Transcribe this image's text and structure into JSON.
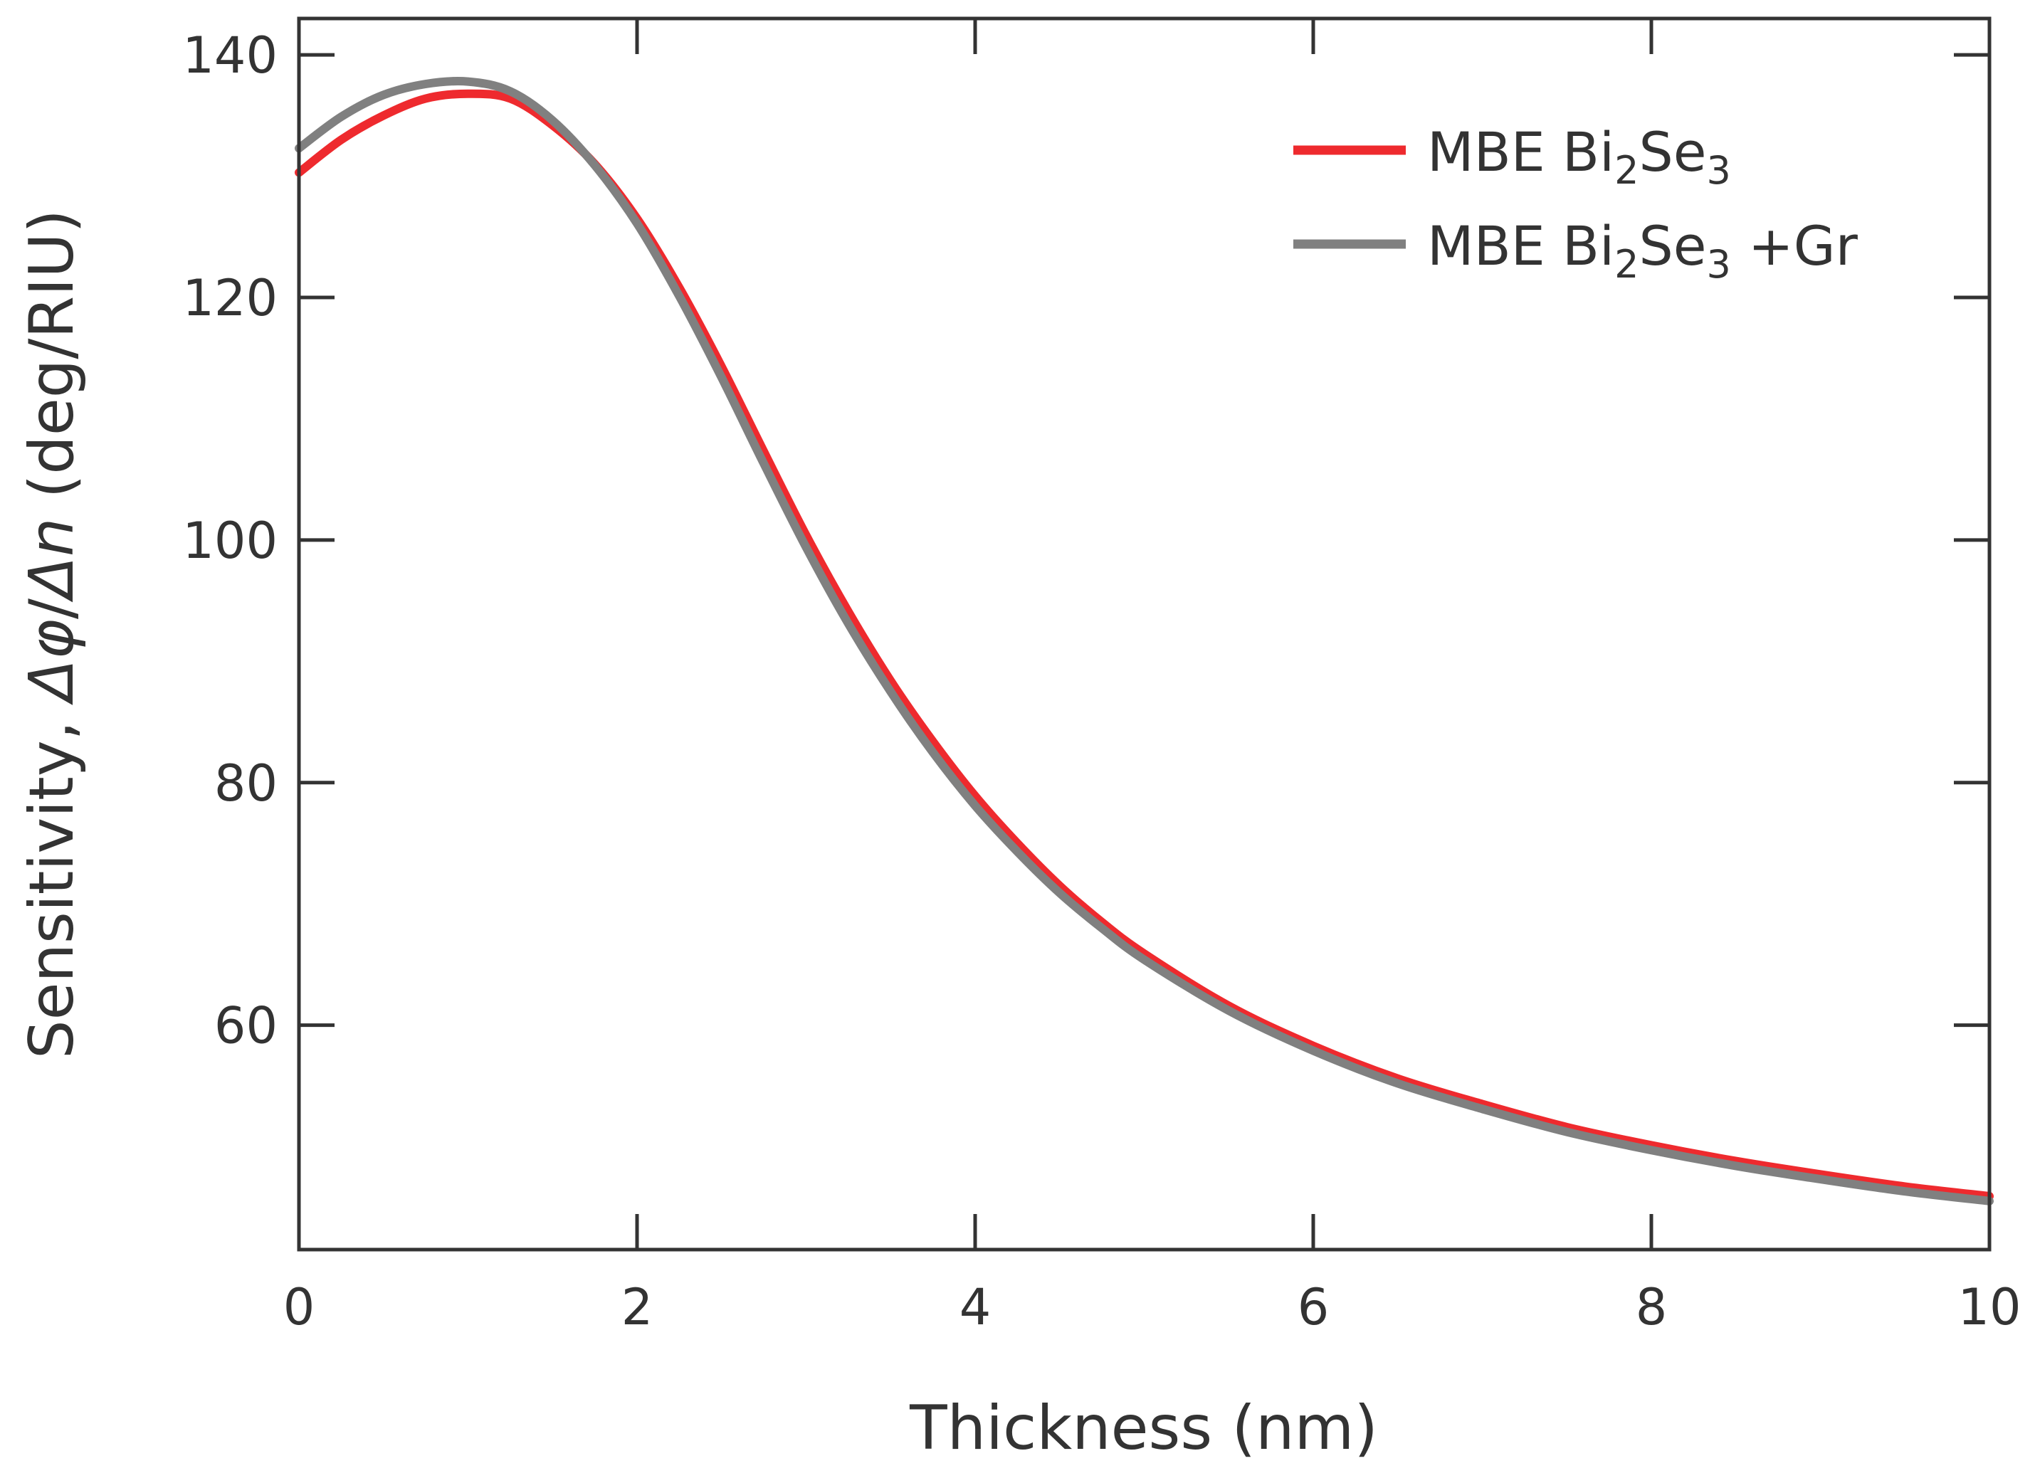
{
  "chart_data": {
    "type": "line",
    "title": "",
    "xlabel": "Thickness (nm)",
    "ylabel": {
      "prefix": "Sensitivity, ",
      "delta1": "Δ",
      "phi": "φ",
      "slash": "/",
      "delta2": "Δ",
      "n": "n",
      "units": " (deg/RIU)"
    },
    "xlim": [
      0,
      10
    ],
    "ylim": [
      41.5,
      143
    ],
    "xticks": [
      0,
      2,
      4,
      6,
      8,
      10
    ],
    "yticks": [
      60,
      80,
      100,
      120,
      140
    ],
    "grid": false,
    "legend_position": "top-right",
    "series": [
      {
        "name": "MBE Bi2Se3",
        "label_parts": [
          "MBE Bi",
          "2",
          "Se",
          "3",
          ""
        ],
        "color": "#ee2a2e",
        "x": [
          0,
          0.25,
          0.5,
          0.75,
          1.0,
          1.25,
          1.5,
          1.75,
          2.0,
          2.25,
          2.5,
          2.75,
          3.0,
          3.25,
          3.5,
          3.75,
          4.0,
          4.25,
          4.5,
          4.75,
          5.0,
          5.5,
          6.0,
          6.5,
          7.0,
          7.5,
          8.0,
          8.5,
          9.0,
          9.5,
          10.0
        ],
        "y": [
          130.3,
          133.0,
          135.0,
          136.4,
          136.8,
          136.4,
          134.2,
          131.0,
          126.5,
          120.8,
          114.3,
          107.3,
          100.4,
          94.1,
          88.4,
          83.4,
          78.9,
          75.0,
          71.5,
          68.5,
          65.9,
          61.6,
          58.3,
          55.6,
          53.5,
          51.6,
          50.1,
          48.8,
          47.7,
          46.7,
          45.9
        ]
      },
      {
        "name": "MBE Bi2Se3 +Gr",
        "label_parts": [
          "MBE Bi",
          "2",
          "Se",
          "3",
          " +Gr"
        ],
        "color": "#808080",
        "x": [
          0,
          0.25,
          0.5,
          0.75,
          1.0,
          1.25,
          1.5,
          1.75,
          2.0,
          2.25,
          2.5,
          2.75,
          3.0,
          3.25,
          3.5,
          3.75,
          4.0,
          4.25,
          4.5,
          4.75,
          5.0,
          5.5,
          6.0,
          6.5,
          7.0,
          7.5,
          8.0,
          8.5,
          9.0,
          9.5,
          10.0
        ],
        "y": [
          132.3,
          134.9,
          136.7,
          137.6,
          137.8,
          137.0,
          134.6,
          130.9,
          126.1,
          120.1,
          113.4,
          106.3,
          99.4,
          93.1,
          87.5,
          82.5,
          78.1,
          74.3,
          70.9,
          68.0,
          65.4,
          61.2,
          57.9,
          55.2,
          53.1,
          51.2,
          49.7,
          48.4,
          47.3,
          46.3,
          45.5
        ]
      }
    ]
  }
}
